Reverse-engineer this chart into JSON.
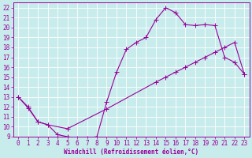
{
  "background_color": "#c8ecec",
  "grid_color": "#ffffff",
  "line_color": "#990099",
  "xlabel": "Windchill (Refroidissement éolien,°C)",
  "xlim": [
    -0.5,
    23.5
  ],
  "ylim": [
    9,
    22.5
  ],
  "xticks": [
    0,
    1,
    2,
    3,
    4,
    5,
    6,
    7,
    8,
    9,
    10,
    11,
    12,
    13,
    14,
    15,
    16,
    17,
    18,
    19,
    20,
    21,
    22,
    23
  ],
  "yticks": [
    9,
    10,
    11,
    12,
    13,
    14,
    15,
    16,
    17,
    18,
    19,
    20,
    21,
    22
  ],
  "line1_x": [
    0,
    1,
    2,
    3,
    4,
    5,
    6,
    7,
    8,
    9,
    10,
    11,
    12,
    13,
    14,
    15,
    16,
    17,
    18,
    19,
    20,
    21,
    22,
    23
  ],
  "line1_y": [
    13,
    12,
    10.5,
    10.2,
    9.2,
    9.0,
    8.85,
    8.85,
    9.0,
    12.5,
    15.5,
    17.8,
    18.5,
    19.0,
    20.8,
    22.0,
    21.5,
    20.3,
    20.2,
    20.3,
    20.2,
    17.0,
    16.5,
    15.3
  ],
  "line2_x": [
    0,
    1,
    2,
    3,
    5,
    9,
    14,
    15,
    16,
    17,
    18,
    19,
    20,
    21,
    22,
    23
  ],
  "line2_y": [
    13,
    11.9,
    10.5,
    10.2,
    9.8,
    11.8,
    14.5,
    15.0,
    15.5,
    16.0,
    16.5,
    17.0,
    17.5,
    18.0,
    18.5,
    15.3
  ],
  "tick_fontsize": 5.5,
  "xlabel_fontsize": 5.5
}
